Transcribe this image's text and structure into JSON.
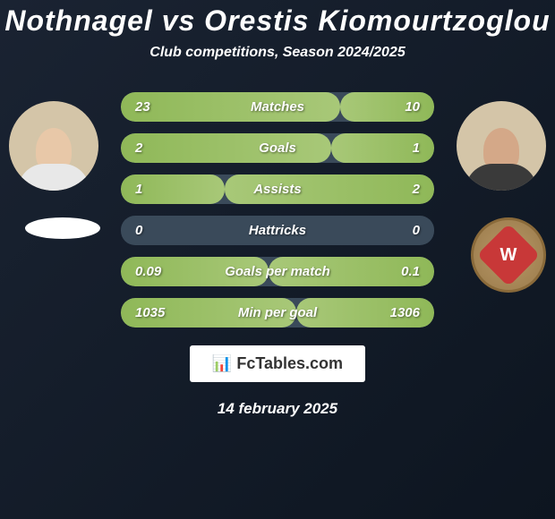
{
  "title": "Nothnagel vs Orestis Kiomourtzoglou",
  "subtitle": "Club competitions, Season 2024/2025",
  "stats": [
    {
      "label": "Matches",
      "left_value": "23",
      "right_value": "10",
      "left_pct": 70,
      "right_pct": 30
    },
    {
      "label": "Goals",
      "left_value": "2",
      "right_value": "1",
      "left_pct": 67,
      "right_pct": 33
    },
    {
      "label": "Assists",
      "left_value": "1",
      "right_value": "2",
      "left_pct": 33,
      "right_pct": 67
    },
    {
      "label": "Hattricks",
      "left_value": "0",
      "right_value": "0",
      "left_pct": 0,
      "right_pct": 0
    },
    {
      "label": "Goals per match",
      "left_value": "0.09",
      "right_value": "0.1",
      "left_pct": 47,
      "right_pct": 53
    },
    {
      "label": "Min per goal",
      "left_value": "1035",
      "right_value": "1306",
      "left_pct": 56,
      "right_pct": 44
    }
  ],
  "colors": {
    "bar_empty": "#3a4a5a",
    "bar_fill_start": "#8fb858",
    "bar_fill_end": "#a8c878",
    "background_start": "#1a2332",
    "background_end": "#0d1520",
    "text": "#ffffff"
  },
  "footer": {
    "brand": "FcTables.com",
    "date": "14 february 2025"
  },
  "club_right_letter": "W"
}
